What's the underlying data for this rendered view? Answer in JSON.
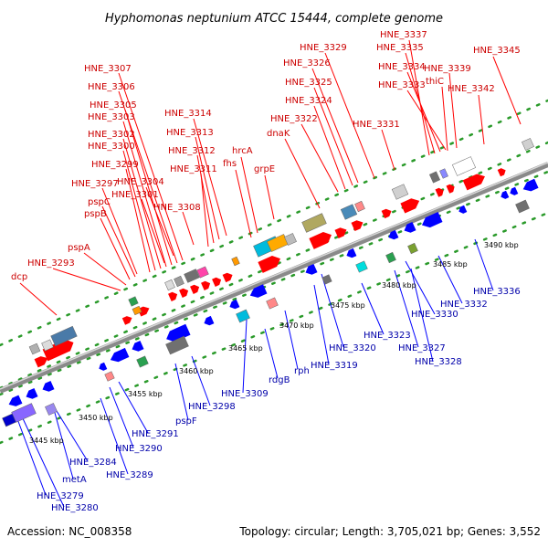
{
  "title": "Hyphomonas neptunium ATCC 15444, complete genome",
  "accession": "Accession: NC_008358",
  "topology": "Topology: circular; Length: 3,705,021 bp; Genes: 3,552",
  "colors": {
    "forward_label": "#cc0000",
    "reverse_label": "#0000aa",
    "forward_gene": "#ff0000",
    "reverse_gene": "#0000ff",
    "track_dots": "#2a9a2a",
    "axis": "#8a8a8a"
  },
  "forward_labels": [
    "HNE_3307",
    "HNE_3306",
    "HNE_3305",
    "HNE_3303",
    "HNE_3302",
    "HNE_3300",
    "HNE_3299",
    "HNE_3304",
    "HNE_3297",
    "HNE_3301",
    "pspC",
    "HNE_3308",
    "pspB",
    "HNE_3314",
    "HNE_3313",
    "HNE_3312",
    "HNE_3311",
    "hrcA",
    "fhs",
    "grpE",
    "dnaK",
    "HNE_3329",
    "HNE_3326",
    "HNE_3325",
    "HNE_3324",
    "HNE_3322",
    "HNE_3331",
    "HNE_3337",
    "HNE_3335",
    "HNE_3334",
    "HNE_3333",
    "HNE_3339",
    "thiC",
    "HNE_3342",
    "HNE_3345",
    "pspA",
    "HNE_3293",
    "dcp"
  ],
  "reverse_labels": [
    "HNE_3336",
    "HNE_3332",
    "HNE_3330",
    "HNE_3323",
    "HNE_3327",
    "HNE_3328",
    "HNE_3320",
    "HNE_3319",
    "rph",
    "rdgB",
    "HNE_3309",
    "HNE_3298",
    "pspF",
    "HNE_3291",
    "HNE_3290",
    "HNE_3289",
    "HNE_3284",
    "metA",
    "HNE_3279",
    "HNE_3280"
  ],
  "scale_labels": [
    "3445 kbp",
    "3450 kbp",
    "3455 kbp",
    "3460 kbp",
    "3465 kbp",
    "3470 kbp",
    "3475 kbp",
    "3480 kbp",
    "3485 kbp",
    "3490 kbp"
  ]
}
